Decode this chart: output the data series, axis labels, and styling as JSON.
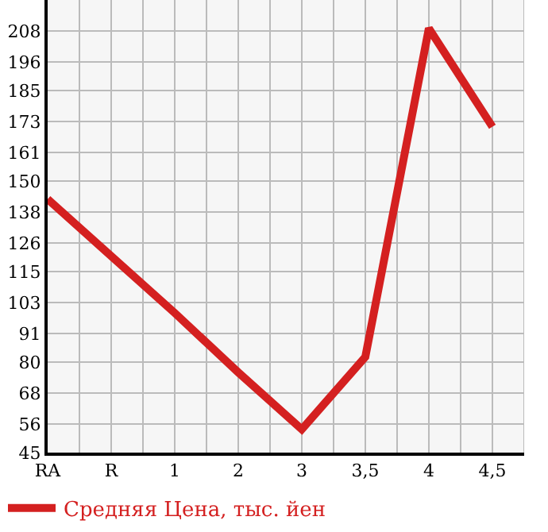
{
  "chart_data": {
    "type": "line",
    "categories": [
      "RA",
      "R",
      "1",
      "2",
      "3",
      "3,5",
      "4",
      "4,5"
    ],
    "series": [
      {
        "name": "Средняя Цена, тыс. йен",
        "color": "#d42020",
        "values": [
          143,
          121,
          99,
          76,
          54,
          82,
          209,
          171
        ]
      }
    ],
    "ylim": [
      45,
      220
    ],
    "yticks": [
      45,
      56,
      68,
      80,
      91,
      103,
      115,
      126,
      138,
      150,
      161,
      173,
      185,
      196,
      208
    ],
    "grid": true,
    "legend": "bottom",
    "marker": "none",
    "line_style": "solid"
  }
}
